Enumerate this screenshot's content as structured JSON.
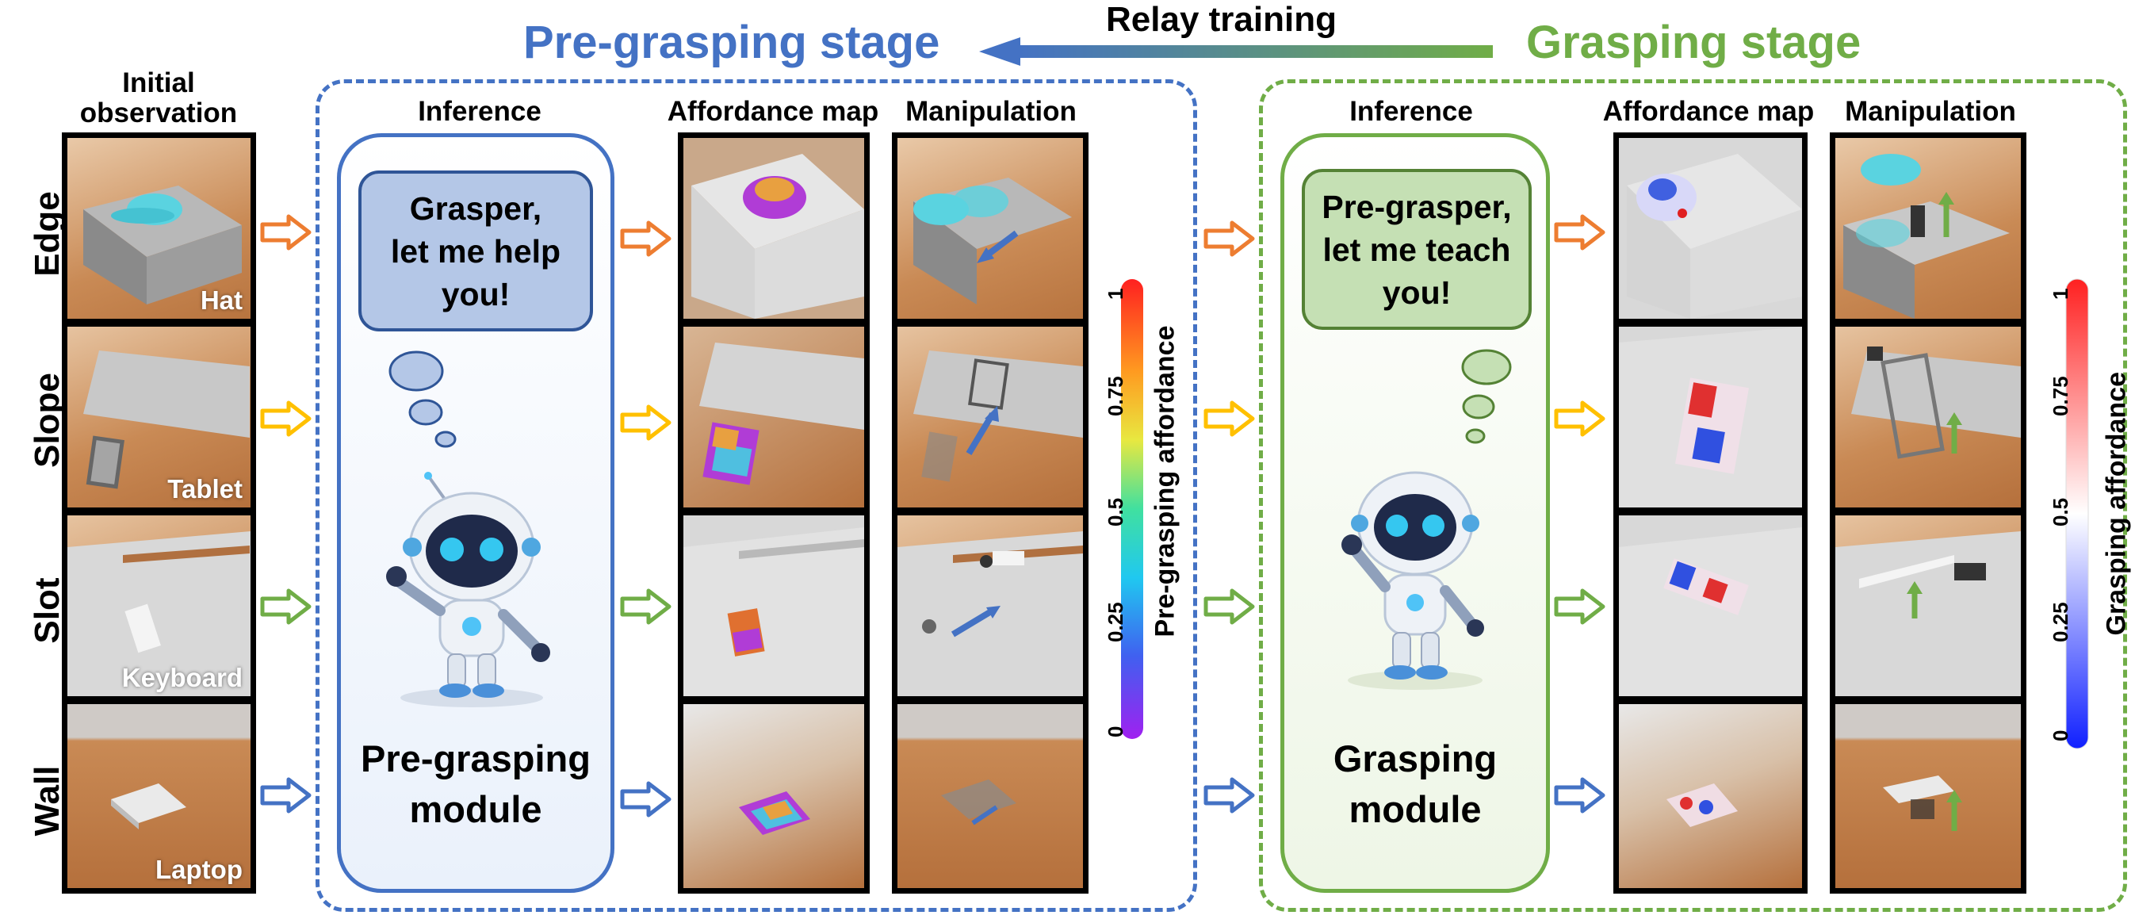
{
  "header": {
    "pre_title": "Pre-grasping stage",
    "relay_label": "Relay training",
    "grasp_title": "Grasping stage"
  },
  "columns": {
    "initial": "Initial\nobservation",
    "inference": "Inference",
    "affordance": "Affordance map",
    "manipulation": "Manipulation"
  },
  "rows": [
    {
      "label": "Edge",
      "object": "Hat",
      "arrow_color": "#ED7D31"
    },
    {
      "label": "Slope",
      "object": "Tablet",
      "arrow_color": "#FFC000"
    },
    {
      "label": "Slot",
      "object": "Keyboard",
      "arrow_color": "#70AD47"
    },
    {
      "label": "Wall",
      "object": "Laptop",
      "arrow_color": "#4472C4"
    }
  ],
  "pre_module": {
    "bubble": "Grasper,\nlet me help\nyou!",
    "name": "Pre-grasping\nmodule"
  },
  "grasp_module": {
    "bubble": "Pre-grasper,\nlet me teach\nyou!",
    "name": "Grasping\nmodule"
  },
  "pre_colorbar": {
    "title": "Pre-grasping affordance",
    "ticks": [
      "0",
      "0.25",
      "0.5",
      "0.75",
      "1"
    ]
  },
  "grasp_colorbar": {
    "title": "Grasping affordance",
    "ticks": [
      "0",
      "0.25",
      "0.5",
      "0.75",
      "1"
    ]
  },
  "colors": {
    "blue": "#4472C4",
    "green": "#70AD47",
    "pre_panel_fill": "#EAF1FB",
    "grasp_panel_fill": "#EEF6E6"
  },
  "icons": {
    "robot": "robot-icon",
    "thought": "thought-bubble-icon",
    "arrow": "hollow-arrow-icon"
  }
}
